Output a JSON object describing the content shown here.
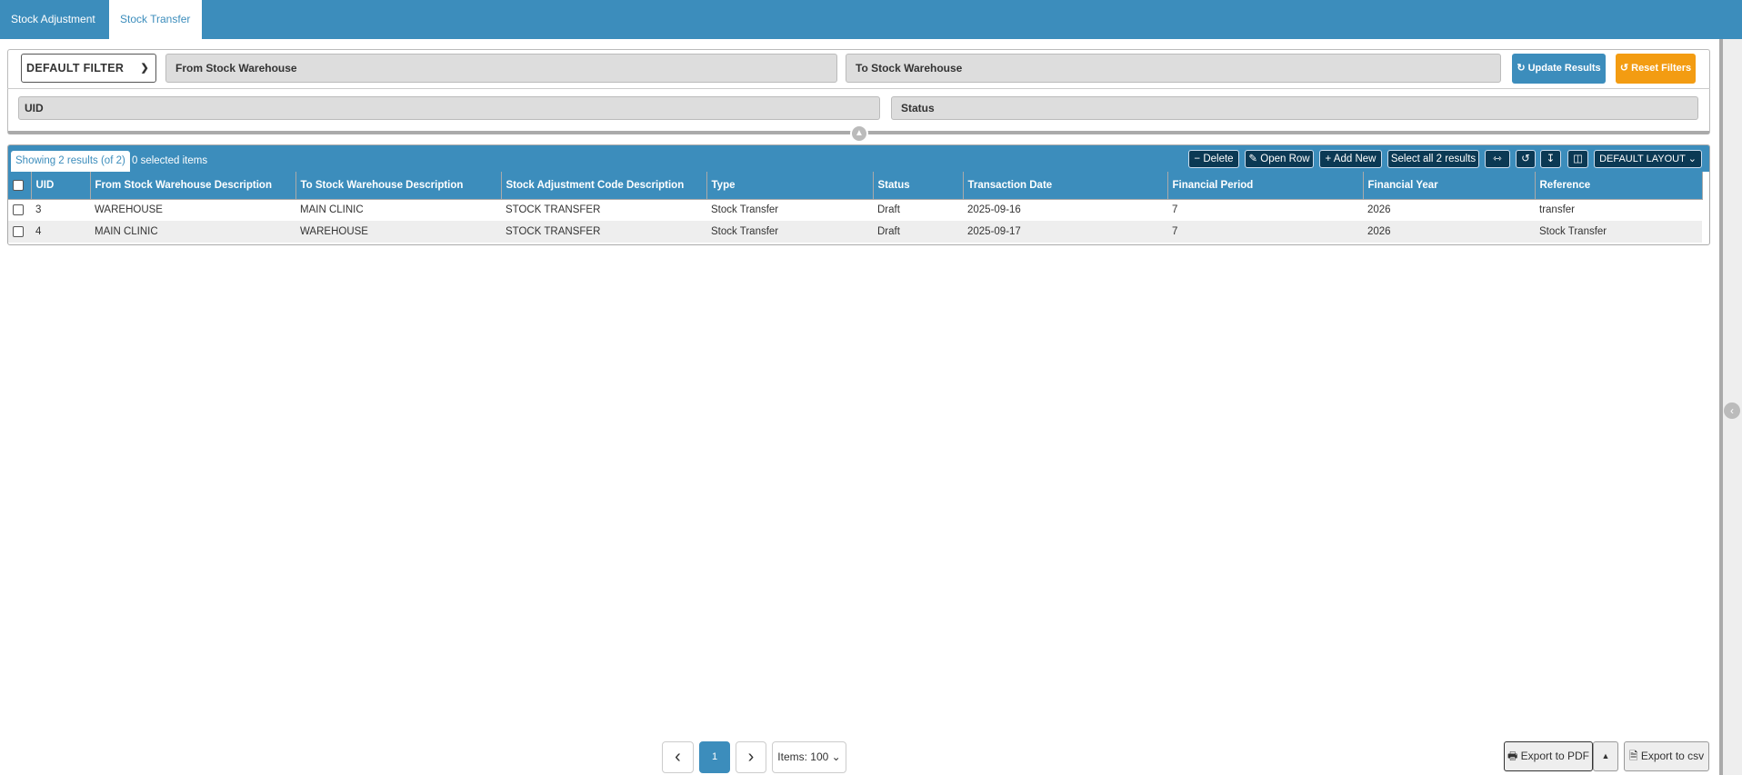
{
  "tabs": [
    {
      "label": "Stock Adjustment",
      "active": false
    },
    {
      "label": "Stock Transfer",
      "active": true
    }
  ],
  "filters": {
    "preset": "DEFAULT FILTER",
    "from_warehouse": "From Stock Warehouse",
    "to_warehouse": "To Stock Warehouse",
    "uid": "UID",
    "status": "Status",
    "update_label": "Update Results",
    "reset_label": "Reset Filters",
    "update_color": "#3c8dbc",
    "reset_color": "#f39c12"
  },
  "grid": {
    "showing": "Showing 2 results (of 2)",
    "selected": "0 selected items",
    "toolbar": {
      "delete": "Delete",
      "open_row": "Open Row",
      "add_new": "Add New",
      "select_all": "Select all 2 results",
      "layout": "DEFAULT LAYOUT"
    },
    "columns": [
      "UID",
      "From Stock Warehouse Description",
      "To Stock Warehouse Description",
      "Stock Adjustment Code Description",
      "Type",
      "Status",
      "Transaction Date",
      "Financial Period",
      "Financial Year",
      "Reference"
    ],
    "rows": [
      [
        "3",
        "WAREHOUSE",
        "MAIN CLINIC",
        "STOCK TRANSFER",
        "Stock Transfer",
        "Draft",
        "2025-09-16",
        "7",
        "2026",
        "transfer"
      ],
      [
        "4",
        "MAIN CLINIC",
        "WAREHOUSE",
        "STOCK TRANSFER",
        "Stock Transfer",
        "Draft",
        "2025-09-17",
        "7",
        "2026",
        "Stock Transfer"
      ]
    ]
  },
  "pagination": {
    "prev": "‹",
    "page": "1",
    "next": "›",
    "items": "Items: 100"
  },
  "export": {
    "pdf": "Export to PDF",
    "csv": "Export to csv"
  }
}
